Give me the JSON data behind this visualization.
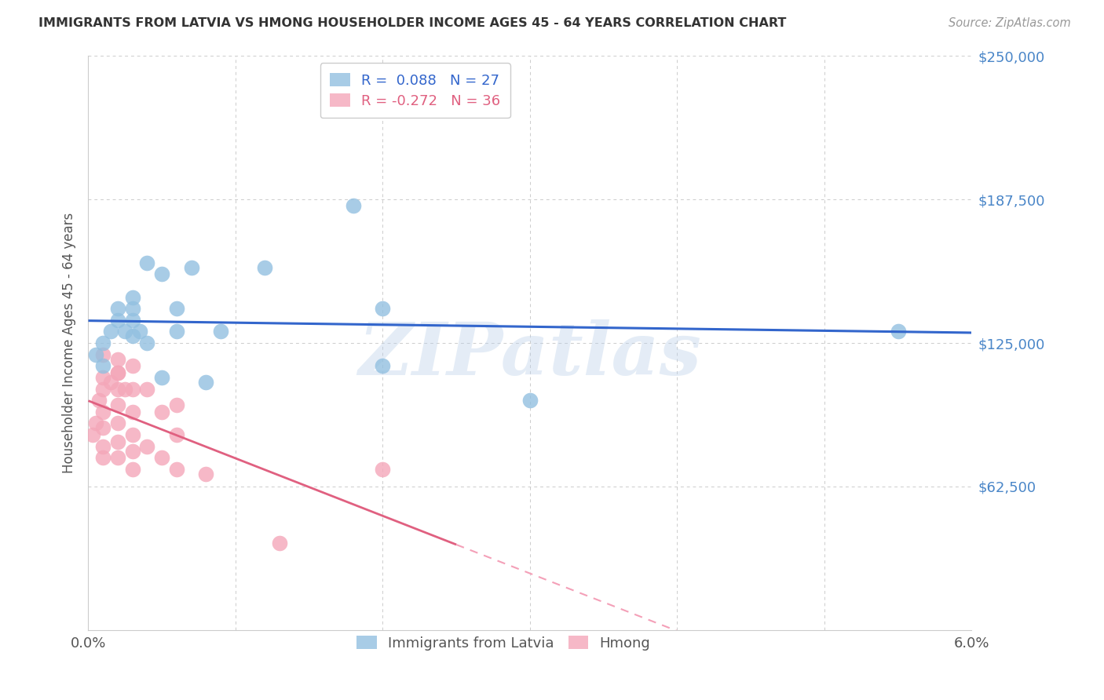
{
  "title": "IMMIGRANTS FROM LATVIA VS HMONG HOUSEHOLDER INCOME AGES 45 - 64 YEARS CORRELATION CHART",
  "source": "Source: ZipAtlas.com",
  "ylabel": "Householder Income Ages 45 - 64 years",
  "watermark": "ZIPatlas",
  "xlim": [
    0.0,
    0.06
  ],
  "ylim": [
    0,
    250000
  ],
  "yticks": [
    0,
    62500,
    125000,
    187500,
    250000
  ],
  "ytick_labels": [
    "",
    "$62,500",
    "$125,000",
    "$187,500",
    "$250,000"
  ],
  "xticks": [
    0.0,
    0.01,
    0.02,
    0.03,
    0.04,
    0.05,
    0.06
  ],
  "xtick_labels": [
    "0.0%",
    "",
    "",
    "",
    "",
    "",
    "6.0%"
  ],
  "latvia_R": 0.088,
  "latvia_N": 27,
  "hmong_R": -0.272,
  "hmong_N": 36,
  "latvia_color": "#92c0e0",
  "hmong_color": "#f4a7b9",
  "latvia_line_color": "#3366cc",
  "hmong_line_color": "#e06080",
  "hmong_dash_color": "#f4a0b8",
  "background_color": "#ffffff",
  "grid_color": "#cccccc",
  "axis_color": "#4a86c8",
  "title_color": "#333333",
  "latvia_x": [
    0.0005,
    0.001,
    0.0015,
    0.002,
    0.002,
    0.0025,
    0.003,
    0.003,
    0.003,
    0.003,
    0.0035,
    0.004,
    0.004,
    0.005,
    0.005,
    0.006,
    0.006,
    0.007,
    0.008,
    0.009,
    0.012,
    0.018,
    0.02,
    0.02,
    0.03,
    0.055,
    0.001
  ],
  "latvia_y": [
    120000,
    125000,
    130000,
    135000,
    140000,
    130000,
    135000,
    128000,
    140000,
    145000,
    130000,
    125000,
    160000,
    110000,
    155000,
    140000,
    130000,
    158000,
    108000,
    130000,
    158000,
    185000,
    140000,
    115000,
    100000,
    130000,
    115000
  ],
  "hmong_x": [
    0.0003,
    0.0005,
    0.0007,
    0.001,
    0.001,
    0.001,
    0.001,
    0.001,
    0.001,
    0.001,
    0.0015,
    0.002,
    0.002,
    0.002,
    0.002,
    0.002,
    0.002,
    0.002,
    0.0025,
    0.003,
    0.003,
    0.003,
    0.003,
    0.003,
    0.003,
    0.004,
    0.004,
    0.005,
    0.005,
    0.006,
    0.006,
    0.006,
    0.008,
    0.013,
    0.02,
    0.002
  ],
  "hmong_y": [
    85000,
    90000,
    100000,
    120000,
    110000,
    105000,
    95000,
    88000,
    80000,
    75000,
    108000,
    118000,
    112000,
    105000,
    98000,
    90000,
    82000,
    75000,
    105000,
    115000,
    105000,
    95000,
    85000,
    78000,
    70000,
    105000,
    80000,
    95000,
    75000,
    98000,
    85000,
    70000,
    68000,
    38000,
    70000,
    112000
  ]
}
